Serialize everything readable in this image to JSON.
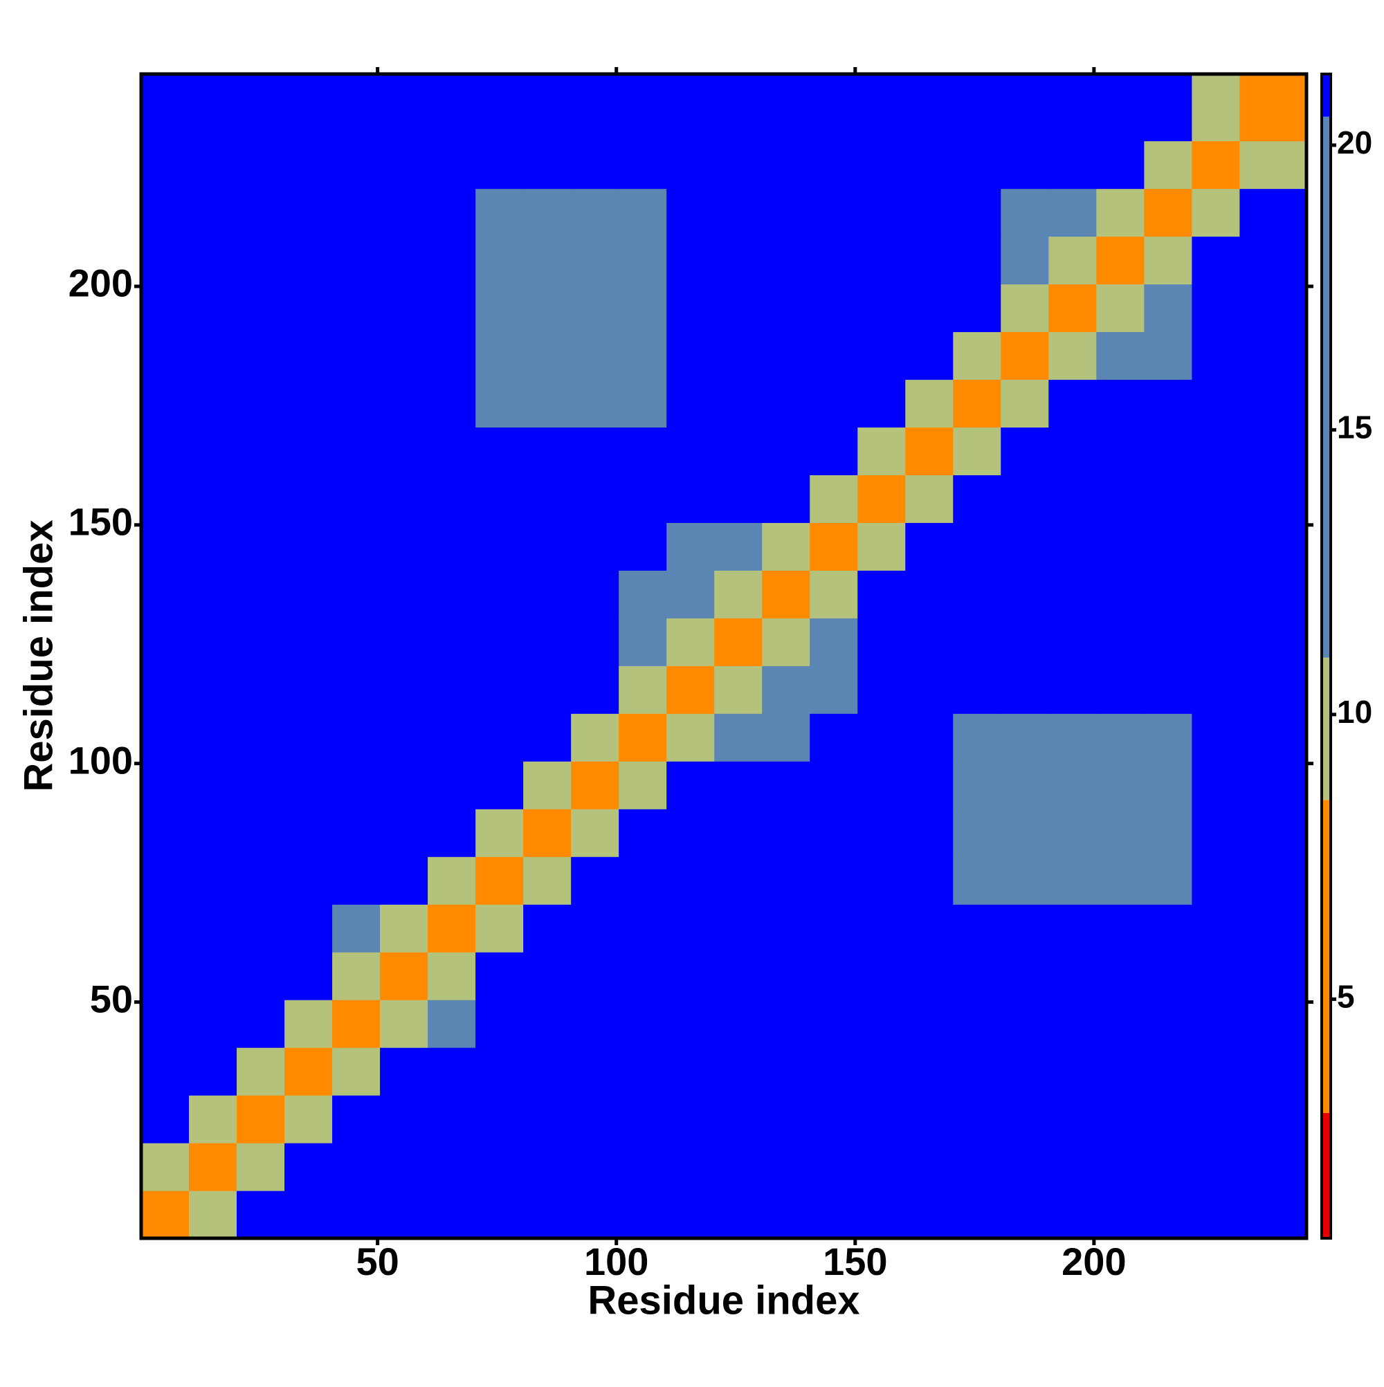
{
  "chart_data": {
    "type": "heatmap",
    "x_label": "Residue index",
    "y_label": "Residue index",
    "xlim": [
      0.5,
      244.5
    ],
    "ylim": [
      0.5,
      244.5
    ],
    "xticks": [
      50,
      100,
      150,
      200
    ],
    "yticks": [
      50,
      100,
      150,
      200
    ],
    "xbins": [
      0.5,
      10.5,
      20.5,
      30.5,
      40.5,
      50.5,
      60.5,
      70.5,
      80.5,
      90.5,
      100.5,
      110.5,
      120.5,
      130.5,
      140.5,
      150.5,
      160.5,
      170.5,
      180.5,
      190.5,
      200.5,
      210.5,
      220.5,
      230.5,
      244.5
    ],
    "ybins": [
      0.5,
      10.5,
      20.5,
      30.5,
      40.5,
      50.5,
      60.5,
      70.5,
      80.5,
      90.5,
      100.5,
      110.5,
      120.5,
      130.5,
      140.5,
      150.5,
      160.5,
      170.5,
      180.5,
      190.5,
      200.5,
      210.5,
      220.5,
      230.5,
      244.5
    ],
    "z": [
      [
        6,
        10,
        21,
        21,
        21,
        21,
        21,
        21,
        21,
        21,
        21,
        21,
        21,
        21,
        21,
        21,
        21,
        21,
        21,
        21,
        21,
        21,
        21,
        21
      ],
      [
        10,
        6,
        10,
        21,
        21,
        21,
        21,
        21,
        21,
        21,
        21,
        21,
        21,
        21,
        21,
        21,
        21,
        21,
        21,
        21,
        21,
        21,
        21,
        21
      ],
      [
        21,
        10,
        6,
        10,
        21,
        21,
        21,
        21,
        21,
        21,
        21,
        21,
        21,
        21,
        21,
        21,
        21,
        21,
        21,
        21,
        21,
        21,
        21,
        21
      ],
      [
        21,
        21,
        10,
        6,
        10,
        21,
        21,
        21,
        21,
        21,
        21,
        21,
        21,
        21,
        21,
        21,
        21,
        21,
        21,
        21,
        21,
        21,
        21,
        21
      ],
      [
        21,
        21,
        21,
        10,
        6,
        10,
        16,
        21,
        21,
        21,
        21,
        21,
        21,
        21,
        21,
        21,
        21,
        21,
        21,
        21,
        21,
        21,
        21,
        21
      ],
      [
        21,
        21,
        21,
        21,
        10,
        6,
        10,
        21,
        21,
        21,
        21,
        21,
        21,
        21,
        21,
        21,
        21,
        21,
        21,
        21,
        21,
        21,
        21,
        21
      ],
      [
        21,
        21,
        21,
        21,
        16,
        10,
        6,
        10,
        21,
        21,
        21,
        21,
        21,
        21,
        21,
        21,
        21,
        21,
        21,
        21,
        21,
        21,
        21,
        21
      ],
      [
        21,
        21,
        21,
        21,
        21,
        21,
        10,
        6,
        10,
        21,
        21,
        21,
        21,
        21,
        21,
        21,
        21,
        17,
        17,
        17,
        17,
        17,
        21,
        21
      ],
      [
        21,
        21,
        21,
        21,
        21,
        21,
        21,
        10,
        6,
        10,
        21,
        21,
        21,
        21,
        21,
        21,
        21,
        17,
        17,
        17,
        17,
        17,
        21,
        21
      ],
      [
        21,
        21,
        21,
        21,
        21,
        21,
        21,
        21,
        10,
        6,
        10,
        21,
        21,
        21,
        21,
        21,
        21,
        17,
        17,
        17,
        17,
        17,
        21,
        21
      ],
      [
        21,
        21,
        21,
        21,
        21,
        21,
        21,
        21,
        21,
        10,
        6,
        10,
        16,
        16,
        21,
        21,
        21,
        17,
        17,
        17,
        17,
        17,
        21,
        21
      ],
      [
        21,
        21,
        21,
        21,
        21,
        21,
        21,
        21,
        21,
        21,
        10,
        6,
        10,
        16,
        16,
        21,
        21,
        21,
        21,
        21,
        21,
        21,
        21,
        21
      ],
      [
        21,
        21,
        21,
        21,
        21,
        21,
        21,
        21,
        21,
        21,
        16,
        10,
        6,
        10,
        16,
        21,
        21,
        21,
        21,
        21,
        21,
        21,
        21,
        21
      ],
      [
        21,
        21,
        21,
        21,
        21,
        21,
        21,
        21,
        21,
        21,
        16,
        16,
        10,
        6,
        10,
        21,
        21,
        21,
        21,
        21,
        21,
        21,
        21,
        21
      ],
      [
        21,
        21,
        21,
        21,
        21,
        21,
        21,
        21,
        21,
        21,
        21,
        16,
        16,
        10,
        6,
        10,
        21,
        21,
        21,
        21,
        21,
        21,
        21,
        21
      ],
      [
        21,
        21,
        21,
        21,
        21,
        21,
        21,
        21,
        21,
        21,
        21,
        21,
        21,
        21,
        10,
        6,
        10,
        21,
        21,
        21,
        21,
        21,
        21,
        21
      ],
      [
        21,
        21,
        21,
        21,
        21,
        21,
        21,
        21,
        21,
        21,
        21,
        21,
        21,
        21,
        21,
        10,
        6,
        10,
        21,
        21,
        21,
        21,
        21,
        21
      ],
      [
        21,
        21,
        21,
        21,
        21,
        21,
        21,
        17,
        17,
        17,
        17,
        21,
        21,
        21,
        21,
        21,
        10,
        6,
        10,
        21,
        21,
        21,
        21,
        21
      ],
      [
        21,
        21,
        21,
        21,
        21,
        21,
        21,
        17,
        17,
        17,
        17,
        21,
        21,
        21,
        21,
        21,
        21,
        10,
        6,
        10,
        16,
        16,
        21,
        21
      ],
      [
        21,
        21,
        21,
        21,
        21,
        21,
        21,
        17,
        17,
        17,
        17,
        21,
        21,
        21,
        21,
        21,
        21,
        21,
        10,
        6,
        10,
        16,
        21,
        21
      ],
      [
        21,
        21,
        21,
        21,
        21,
        21,
        21,
        17,
        17,
        17,
        17,
        21,
        21,
        21,
        21,
        21,
        21,
        21,
        16,
        10,
        6,
        10,
        21,
        21
      ],
      [
        21,
        21,
        21,
        21,
        21,
        21,
        21,
        17,
        17,
        17,
        17,
        21,
        21,
        21,
        21,
        21,
        21,
        21,
        16,
        16,
        10,
        6,
        10,
        21
      ],
      [
        21,
        21,
        21,
        21,
        21,
        21,
        21,
        21,
        21,
        21,
        21,
        21,
        21,
        21,
        21,
        21,
        21,
        21,
        21,
        21,
        21,
        10,
        6,
        10
      ],
      [
        21,
        21,
        21,
        21,
        21,
        21,
        21,
        21,
        21,
        21,
        21,
        21,
        21,
        21,
        21,
        21,
        21,
        21,
        21,
        21,
        21,
        21,
        10,
        6
      ]
    ],
    "colorbar_lim": [
      0.8,
      21.25
    ],
    "colorbar_ticks": [
      5,
      10,
      15,
      20
    ],
    "colorscale": [
      [
        0.8,
        "#e80000"
      ],
      [
        3,
        "#ff8a00"
      ],
      [
        8.5,
        "#b4c27c"
      ],
      [
        11,
        "#5b86b4"
      ],
      [
        20.5,
        "#0000ff"
      ]
    ]
  }
}
